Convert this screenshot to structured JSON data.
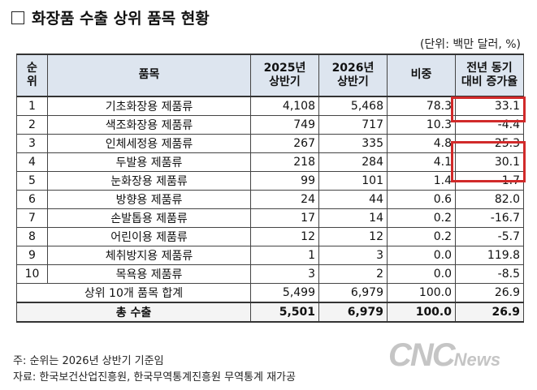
{
  "title": "화장품 수출 상위 품목 현황",
  "unit": "(단위: 백만 달러, %)",
  "headers": {
    "rank": "순\n위",
    "item": "품목",
    "h2025": "2025년\n상반기",
    "h2026": "2026년\n상반기",
    "share": "비중",
    "growth": "전년 동기\n대비 증가율"
  },
  "rows": [
    {
      "rank": "1",
      "item": "기초화장용 제품류",
      "v2025": "4,108",
      "v2026": "5,468",
      "share": "78.3",
      "growth": "33.1"
    },
    {
      "rank": "2",
      "item": "색조화장용 제품류",
      "v2025": "749",
      "v2026": "717",
      "share": "10.3",
      "growth": "-4.4"
    },
    {
      "rank": "3",
      "item": "인체세정용 제품류",
      "v2025": "267",
      "v2026": "335",
      "share": "4.8",
      "growth": "25.3"
    },
    {
      "rank": "4",
      "item": "두발용 제품류",
      "v2025": "218",
      "v2026": "284",
      "share": "4.1",
      "growth": "30.1"
    },
    {
      "rank": "5",
      "item": "눈화장용 제품류",
      "v2025": "99",
      "v2026": "101",
      "share": "1.4",
      "growth": "1.7"
    },
    {
      "rank": "6",
      "item": "방향용 제품류",
      "v2025": "24",
      "v2026": "44",
      "share": "0.6",
      "growth": "82.0"
    },
    {
      "rank": "7",
      "item": "손발톱용 제품류",
      "v2025": "17",
      "v2026": "14",
      "share": "0.2",
      "growth": "-16.7"
    },
    {
      "rank": "8",
      "item": "어린이용 제품류",
      "v2025": "12",
      "v2026": "12",
      "share": "0.2",
      "growth": "-5.7"
    },
    {
      "rank": "9",
      "item": "체취방지용 제품류",
      "v2025": "1",
      "v2026": "3",
      "share": "0.0",
      "growth": "119.8"
    },
    {
      "rank": "10",
      "item": "목욕용 제품류",
      "v2025": "3",
      "v2026": "2",
      "share": "0.0",
      "growth": "-8.5"
    }
  ],
  "subtotal": {
    "label": "상위 10개 품목 합계",
    "v2025": "5,499",
    "v2026": "6,979",
    "share": "100.0",
    "growth": "26.9"
  },
  "total": {
    "label": "총 수출",
    "v2025": "5,501",
    "v2026": "6,979",
    "share": "100.0",
    "growth": "26.9"
  },
  "notes": {
    "note": "주: 순위는 2026년 상반기 기준임",
    "source": "자료: 한국보건산업진흥원, 한국무역통계진흥원 무역통계 재가공"
  },
  "watermark": {
    "big": "CNC",
    "small": "News"
  },
  "colors": {
    "header_bg": "#dde5ef",
    "highlight": "#d12a2a"
  }
}
